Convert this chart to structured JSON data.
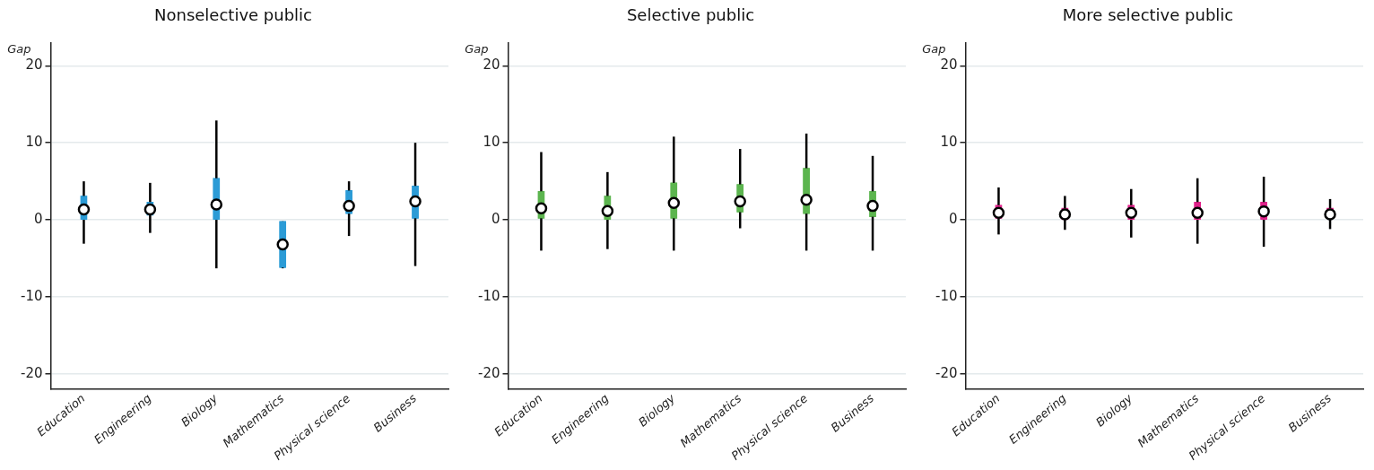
{
  "chart_data": [
    {
      "type": "box",
      "title": "Nonselective public",
      "ylabel": "Gap",
      "categories": [
        "Education",
        "Engineering",
        "Biology",
        "Mathematics",
        "Physical science",
        "Business"
      ],
      "ylim": [
        -22,
        23
      ],
      "yticks": [
        -20,
        -10,
        0,
        10,
        20
      ],
      "grid": "y",
      "legend": false,
      "series": [
        {
          "color": "#2b9bd6",
          "boxes": [
            {
              "low": -3.1,
              "q1": 0,
              "median": 1.35,
              "q3": 3.1,
              "high": 5
            },
            {
              "low": -1.7,
              "q1": 0.6,
              "median": 1.35,
              "q3": 2.3,
              "high": 4.8
            },
            {
              "low": -6.3,
              "q1": 0,
              "median": 2.0,
              "q3": 5.4,
              "high": 12.9
            },
            {
              "low": -6.3,
              "q1": -6.2,
              "median": -3.2,
              "q3": -0.2,
              "high": -0.2
            },
            {
              "low": -2.1,
              "q1": 0.8,
              "median": 1.8,
              "q3": 3.8,
              "high": 5.0
            },
            {
              "low": -6.0,
              "q1": 0.2,
              "median": 2.4,
              "q3": 4.4,
              "high": 10.0
            }
          ]
        }
      ]
    },
    {
      "type": "box",
      "title": "Selective public",
      "ylabel": "Gap",
      "categories": [
        "Education",
        "Engineering",
        "Biology",
        "Mathematics",
        "Physical science",
        "Business"
      ],
      "ylim": [
        -22,
        23
      ],
      "yticks": [
        -20,
        -10,
        0,
        10,
        20
      ],
      "grid": "y",
      "legend": false,
      "series": [
        {
          "color": "#5cb54f",
          "boxes": [
            {
              "low": -4.0,
              "q1": 0.2,
              "median": 1.5,
              "q3": 3.7,
              "high": 8.8
            },
            {
              "low": -3.8,
              "q1": 0,
              "median": 1.15,
              "q3": 3.1,
              "high": 6.2
            },
            {
              "low": -4.0,
              "q1": 0.2,
              "median": 2.2,
              "q3": 4.8,
              "high": 10.8
            },
            {
              "low": -1.1,
              "q1": 1.0,
              "median": 2.4,
              "q3": 4.6,
              "high": 9.2
            },
            {
              "low": -4.0,
              "q1": 0.8,
              "median": 2.6,
              "q3": 6.7,
              "high": 11.2
            },
            {
              "low": -4.0,
              "q1": 0.4,
              "median": 1.8,
              "q3": 3.7,
              "high": 8.3
            }
          ]
        }
      ]
    },
    {
      "type": "box",
      "title": "More selective public",
      "ylabel": "Gap",
      "categories": [
        "Education",
        "Engineering",
        "Biology",
        "Mathematics",
        "Physical science",
        "Business"
      ],
      "ylim": [
        -22,
        23
      ],
      "yticks": [
        -20,
        -10,
        0,
        10,
        20
      ],
      "grid": "y",
      "legend": false,
      "series": [
        {
          "color": "#e0218a",
          "boxes": [
            {
              "low": -1.9,
              "q1": 0.2,
              "median": 0.9,
              "q3": 1.9,
              "high": 4.2
            },
            {
              "low": -1.3,
              "q1": 0,
              "median": 0.7,
              "q3": 1.5,
              "high": 3.1
            },
            {
              "low": -2.3,
              "q1": 0,
              "median": 0.9,
              "q3": 1.9,
              "high": 4.0
            },
            {
              "low": -3.1,
              "q1": 0,
              "median": 0.9,
              "q3": 2.3,
              "high": 5.4
            },
            {
              "low": -3.5,
              "q1": 0,
              "median": 1.1,
              "q3": 2.3,
              "high": 5.6
            },
            {
              "low": -1.2,
              "q1": 0.2,
              "median": 0.7,
              "q3": 1.5,
              "high": 2.7
            }
          ]
        }
      ]
    }
  ]
}
